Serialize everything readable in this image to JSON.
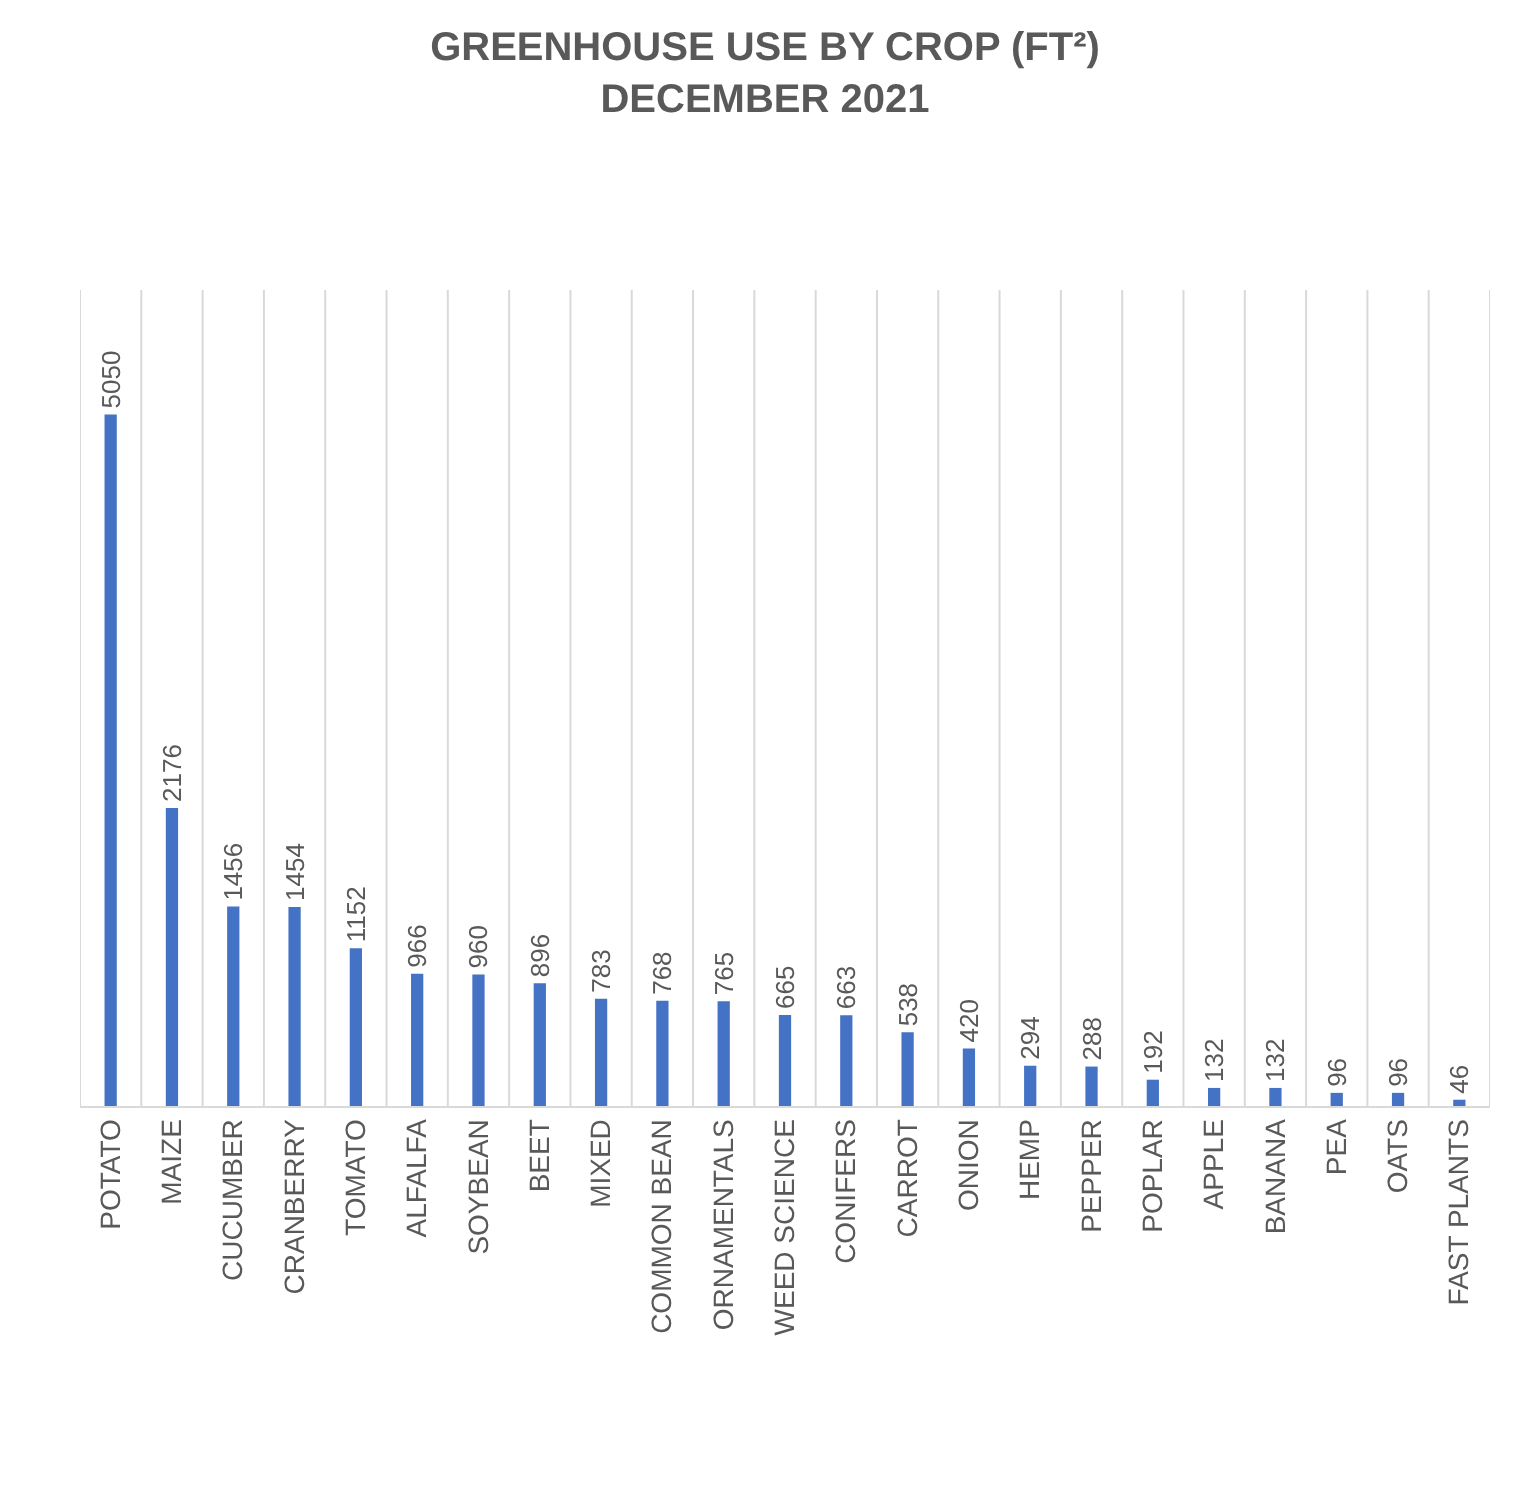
{
  "chart_data": {
    "type": "bar",
    "title": "GREENHOUSE USE BY CROP (FT²)",
    "subtitle": "DECEMBER 2021",
    "categories": [
      "POTATO",
      "MAIZE",
      "CUCUMBER",
      "CRANBERRY",
      "TOMATO",
      "ALFALFA",
      "SOYBEAN",
      "BEET",
      "MIXED",
      "COMMON BEAN",
      "ORNAMENTALS",
      "WEED SCIENCE",
      "CONIFERS",
      "CARROT",
      "ONION",
      "HEMP",
      "PEPPER",
      "POPLAR",
      "APPLE",
      "BANANA",
      "PEA",
      "OATS",
      "FAST PLANTS"
    ],
    "values": [
      5050,
      2176,
      1456,
      1454,
      1152,
      966,
      960,
      896,
      783,
      768,
      765,
      665,
      663,
      538,
      420,
      294,
      288,
      192,
      132,
      132,
      96,
      96,
      46
    ],
    "color": "#4472c4",
    "data_labels": true,
    "grid": "x",
    "legend": false
  }
}
